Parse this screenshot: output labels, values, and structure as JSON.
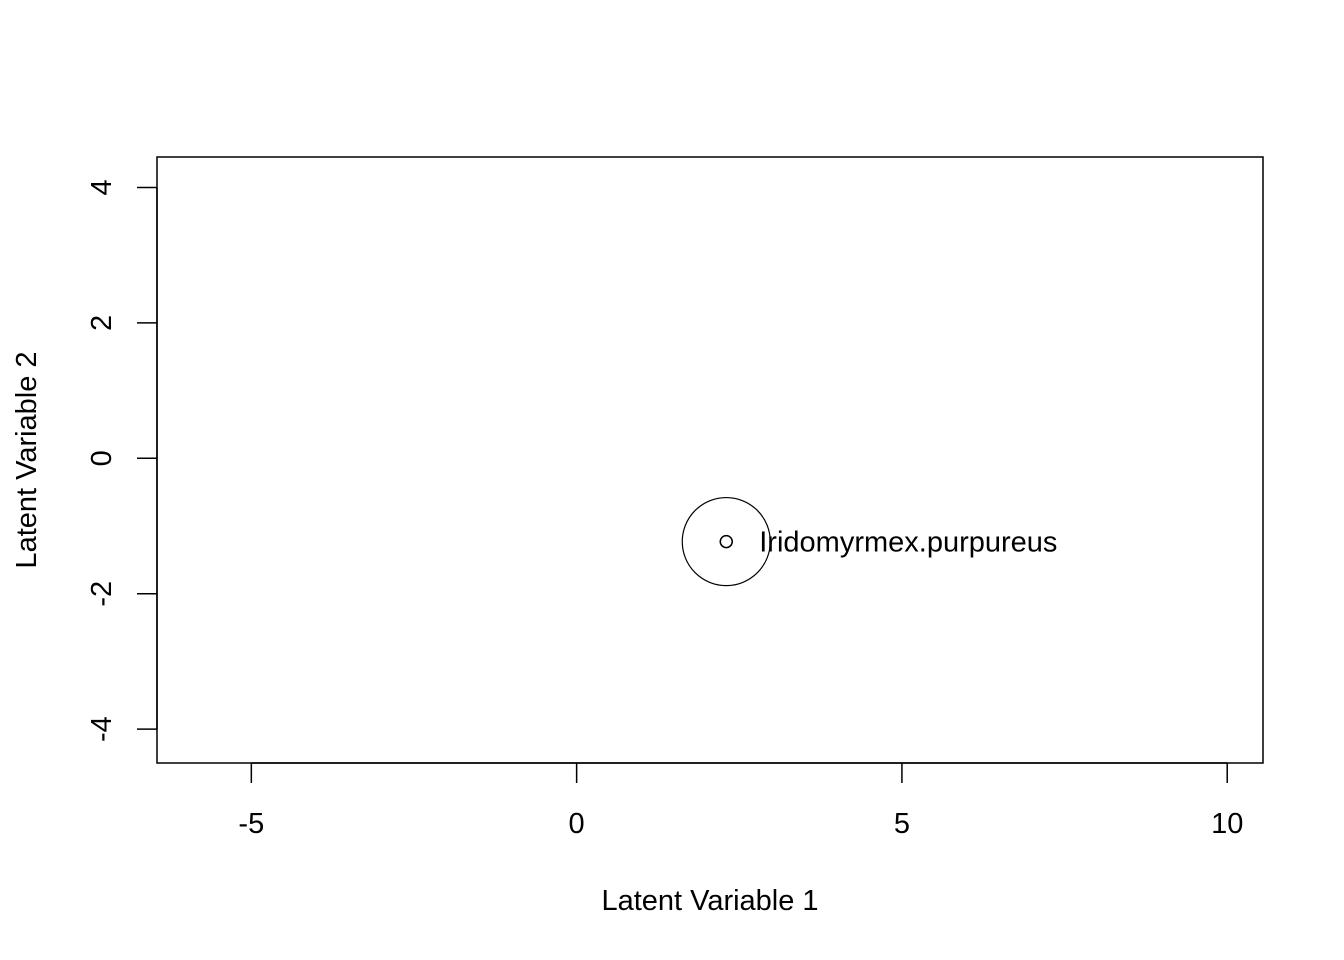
{
  "chart_data": {
    "type": "scatter",
    "title": "",
    "xlabel": "Latent Variable 1",
    "ylabel": "Latent Variable 2",
    "xlim": [
      -6.45,
      10.55
    ],
    "ylim": [
      -4.5,
      4.45
    ],
    "xticks": [
      -5,
      0,
      5,
      10
    ],
    "xtick_labels": [
      "-5",
      "0",
      "5",
      "10"
    ],
    "yticks": [
      -4,
      -2,
      0,
      2,
      4
    ],
    "ytick_labels": [
      "-4",
      "-2",
      "0",
      "2",
      "4"
    ],
    "grid": false,
    "points": [
      {
        "x": 2.3,
        "y": -1.23,
        "label": "Iridomyrmex.purpureus",
        "radius": 0.65
      }
    ]
  }
}
